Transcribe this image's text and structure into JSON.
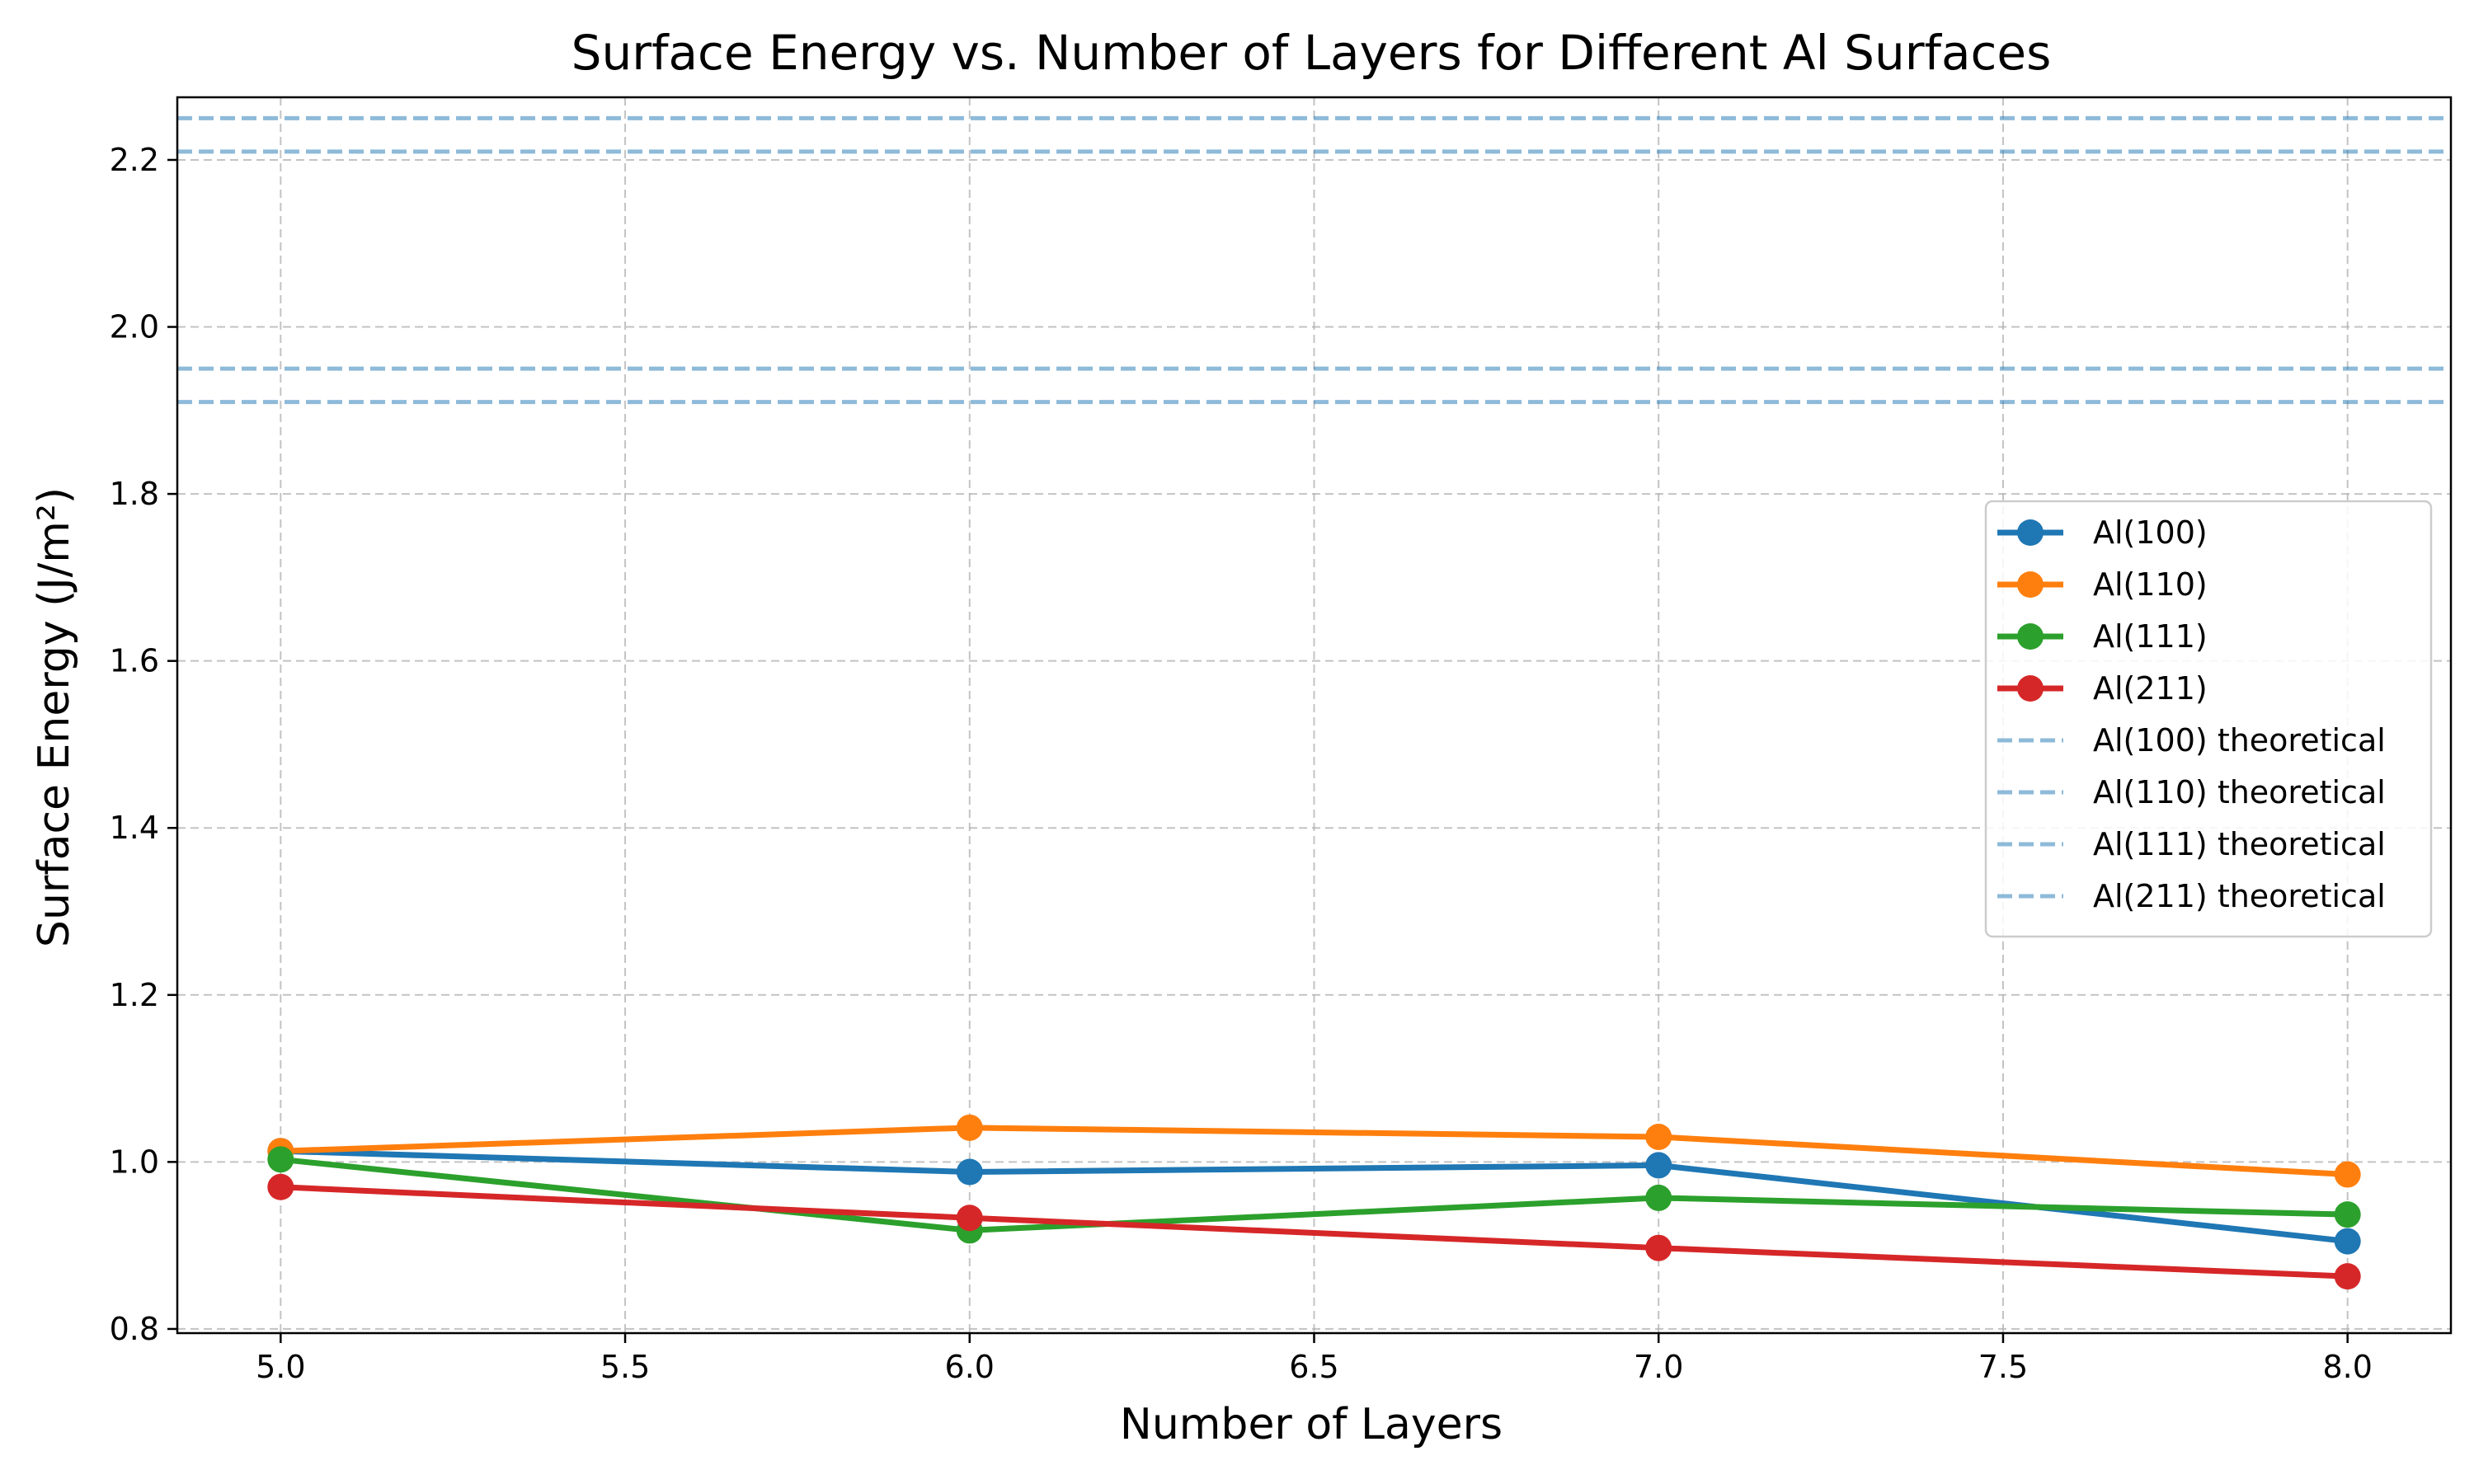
{
  "chart_data": {
    "type": "line",
    "title": "Surface Energy vs. Number of Layers for Different Al Surfaces",
    "xlabel": "Number of Layers",
    "ylabel": "Surface Energy (J/m²)",
    "xlim": [
      4.85,
      8.15
    ],
    "ylim": [
      0.795,
      2.275
    ],
    "x_ticks": [
      "5.0",
      "5.5",
      "6.0",
      "6.5",
      "7.0",
      "7.5",
      "8.0"
    ],
    "y_ticks": [
      "0.8",
      "1.0",
      "1.2",
      "1.4",
      "1.6",
      "1.8",
      "2.0",
      "2.2"
    ],
    "grid": true,
    "legend_position": "center-right",
    "x": [
      5,
      6,
      7,
      8
    ],
    "series": [
      {
        "name": "Al(100)",
        "color": "#1f77b4",
        "values": [
          1.013,
          0.988,
          0.996,
          0.905
        ]
      },
      {
        "name": "Al(110)",
        "color": "#ff7f0e",
        "values": [
          1.013,
          1.041,
          1.03,
          0.985
        ]
      },
      {
        "name": "Al(111)",
        "color": "#2ca02c",
        "values": [
          1.003,
          0.918,
          0.957,
          0.937
        ]
      },
      {
        "name": "Al(211)",
        "color": "#d62728",
        "values": [
          0.97,
          0.933,
          0.897,
          0.863
        ]
      }
    ],
    "reference_lines": [
      {
        "name": "Al(100) theoretical",
        "value": 2.21,
        "color": "#1f77b4",
        "style": "dashed"
      },
      {
        "name": "Al(110) theoretical",
        "value": 2.25,
        "color": "#1f77b4",
        "style": "dashed"
      },
      {
        "name": "Al(111) theoretical",
        "value": 1.91,
        "color": "#1f77b4",
        "style": "dashed"
      },
      {
        "name": "Al(211) theoretical",
        "value": 1.95,
        "color": "#1f77b4",
        "style": "dashed"
      }
    ]
  }
}
